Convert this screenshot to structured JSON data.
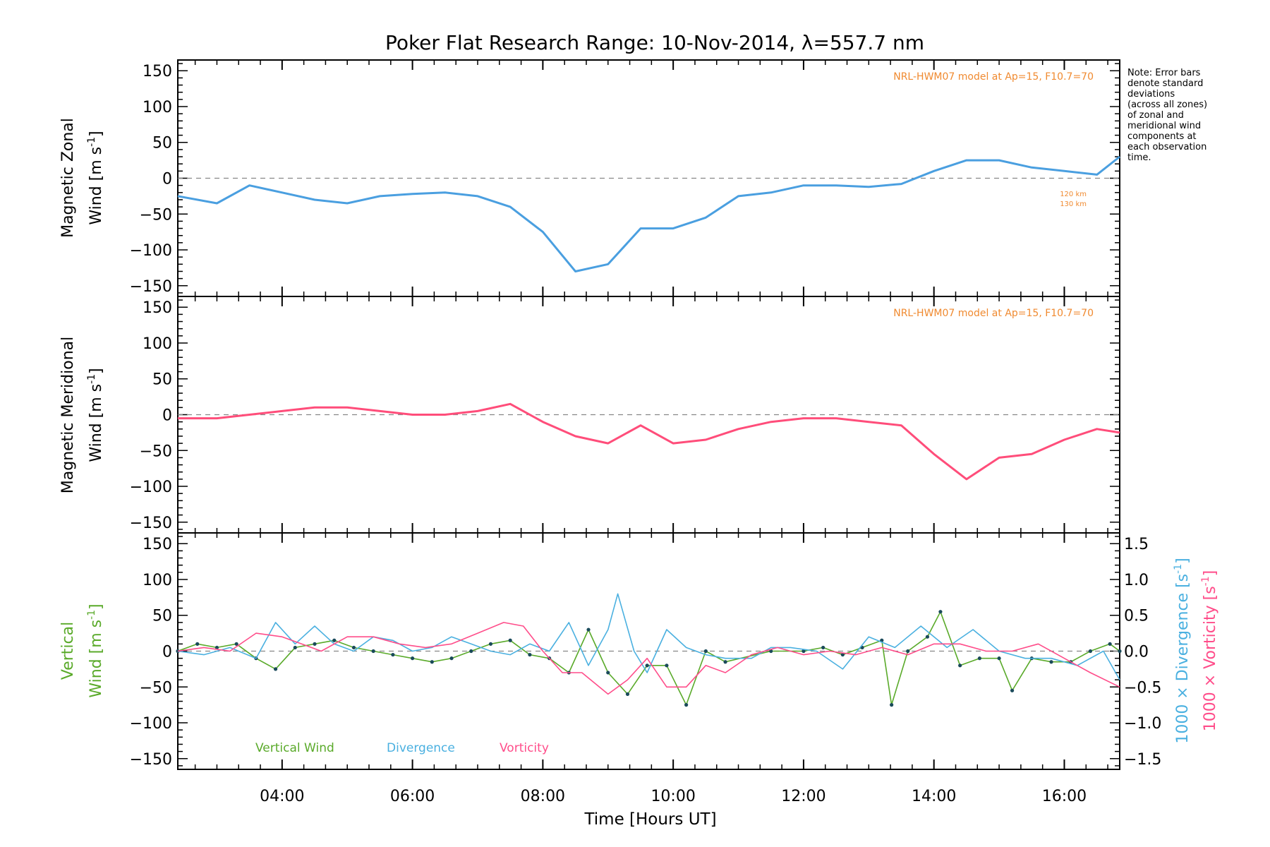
{
  "chart_data": {
    "type": "line",
    "title": "Poker Flat Research Range: 10-Nov-2014, λ=557.7 nm",
    "xlabel": "Time [Hours UT]",
    "xlim": [
      2.4,
      16.85
    ],
    "x_ticks": [
      4,
      6,
      8,
      10,
      12,
      14,
      16
    ],
    "x_tick_labels": [
      "04:00",
      "06:00",
      "08:00",
      "10:00",
      "12:00",
      "14:00",
      "16:00"
    ],
    "note": [
      "Note: Error bars",
      "denote standard",
      "deviations",
      "(across all zones)",
      "of zonal and",
      "meridional wind",
      "components at",
      "each observation",
      "time."
    ],
    "panels": [
      {
        "id": "zonal",
        "ylabel_line1": "Magnetic Zonal",
        "ylabel_line2": "Wind [m s",
        "ylim": [
          -165,
          165
        ],
        "y_ticks": [
          -150,
          -100,
          -50,
          0,
          50,
          100,
          150
        ],
        "model_label": "NRL-HWM07 model at Ap=15, F10.7=70",
        "height_labels": [
          "120 km",
          "130 km"
        ],
        "series": [
          {
            "color": "#4a9fe0",
            "x": [
              2.4,
              3.0,
              3.5,
              4.0,
              4.5,
              5.0,
              5.5,
              6.0,
              6.5,
              7.0,
              7.5,
              8.0,
              8.5,
              9.0,
              9.5,
              10.0,
              10.5,
              11.0,
              11.5,
              12.0,
              12.5,
              13.0,
              13.5,
              14.0,
              14.5,
              15.0,
              15.5,
              16.0,
              16.5,
              16.85
            ],
            "values": [
              -25,
              -35,
              -10,
              -20,
              -30,
              -35,
              -25,
              -22,
              -20,
              -25,
              -40,
              -75,
              -130,
              -120,
              -70,
              -70,
              -55,
              -25,
              -20,
              -10,
              -10,
              -12,
              -8,
              10,
              25,
              25,
              15,
              10,
              5,
              30
            ]
          }
        ]
      },
      {
        "id": "meridional",
        "ylabel_line1": "Magnetic Meridional",
        "ylabel_line2": "Wind [m s",
        "ylim": [
          -165,
          165
        ],
        "y_ticks": [
          -150,
          -100,
          -50,
          0,
          50,
          100,
          150
        ],
        "model_label": "NRL-HWM07 model at Ap=15, F10.7=70",
        "series": [
          {
            "color": "#ff4d7a",
            "x": [
              2.4,
              3.0,
              3.5,
              4.0,
              4.5,
              5.0,
              5.5,
              6.0,
              6.5,
              7.0,
              7.5,
              8.0,
              8.5,
              9.0,
              9.5,
              10.0,
              10.5,
              11.0,
              11.5,
              12.0,
              12.5,
              13.0,
              13.5,
              14.0,
              14.5,
              15.0,
              15.5,
              16.0,
              16.5,
              16.85
            ],
            "values": [
              -5,
              -5,
              0,
              5,
              10,
              10,
              5,
              0,
              0,
              5,
              15,
              -10,
              -30,
              -40,
              -15,
              -40,
              -35,
              -20,
              -10,
              -5,
              -5,
              -10,
              -15,
              -55,
              -90,
              -60,
              -55,
              -35,
              -20,
              -25
            ]
          }
        ]
      },
      {
        "id": "vertical",
        "ylabel_line1": "Vertical",
        "ylabel_line2": "Wind [m s",
        "ylim": [
          -165,
          165
        ],
        "y_ticks": [
          -150,
          -100,
          -50,
          0,
          50,
          100,
          150
        ],
        "y2label_div": "1000 × Divergence [s",
        "y2label_vort": "1000 × Vorticity [s",
        "y2lim": [
          -1.65,
          1.65
        ],
        "y2_ticks": [
          -1.5,
          -1.0,
          -0.5,
          0.0,
          0.5,
          1.0,
          1.5
        ],
        "y2_tick_labels": [
          "−1.5",
          "−1.0",
          "−0.5",
          "0.0",
          "0.5",
          "1.0",
          "1.5"
        ],
        "legend": [
          {
            "label": "Vertical Wind",
            "color": "#5aaa2a"
          },
          {
            "label": "Divergence",
            "color": "#4ab0e0"
          },
          {
            "label": "Vorticity",
            "color": "#ff4d8a"
          }
        ],
        "series": [
          {
            "name": "Vertical Wind",
            "color": "#5aaa2a",
            "axis": "left",
            "x": [
              2.4,
              2.7,
              3.0,
              3.3,
              3.6,
              3.9,
              4.2,
              4.5,
              4.8,
              5.1,
              5.4,
              5.7,
              6.0,
              6.3,
              6.6,
              6.9,
              7.2,
              7.5,
              7.8,
              8.1,
              8.4,
              8.7,
              9.0,
              9.3,
              9.6,
              9.9,
              10.2,
              10.5,
              10.8,
              11.5,
              12.0,
              12.3,
              12.6,
              12.9,
              13.2,
              13.35,
              13.6,
              13.9,
              14.1,
              14.4,
              14.7,
              15.0,
              15.2,
              15.5,
              15.8,
              16.1,
              16.4,
              16.7,
              16.85
            ],
            "values": [
              0,
              10,
              5,
              10,
              -10,
              -25,
              5,
              10,
              15,
              5,
              0,
              -5,
              -10,
              -15,
              -10,
              0,
              10,
              15,
              -5,
              -10,
              -30,
              30,
              -30,
              -60,
              -20,
              -20,
              -75,
              0,
              -15,
              0,
              0,
              5,
              -5,
              5,
              15,
              -75,
              0,
              20,
              55,
              -20,
              -10,
              -10,
              -55,
              -10,
              -15,
              -15,
              0,
              10,
              0
            ]
          },
          {
            "name": "Divergence",
            "color": "#4ab0e0",
            "axis": "right",
            "x": [
              2.4,
              2.8,
              3.2,
              3.6,
              3.9,
              4.2,
              4.5,
              4.8,
              5.1,
              5.4,
              5.7,
              6.0,
              6.3,
              6.6,
              6.9,
              7.2,
              7.5,
              7.8,
              8.1,
              8.4,
              8.7,
              9.0,
              9.15,
              9.4,
              9.6,
              9.9,
              10.2,
              10.5,
              10.8,
              11.2,
              11.5,
              11.8,
              12.2,
              12.6,
              13.0,
              13.4,
              13.8,
              14.2,
              14.6,
              15.0,
              15.4,
              15.8,
              16.2,
              16.6,
              16.85
            ],
            "values": [
              0,
              -0.05,
              0.05,
              -0.1,
              0.4,
              0.1,
              0.35,
              0.1,
              0.0,
              0.2,
              0.15,
              0.0,
              0.05,
              0.2,
              0.1,
              0.0,
              -0.05,
              0.1,
              0.0,
              0.4,
              -0.2,
              0.3,
              0.8,
              0.0,
              -0.3,
              0.3,
              0.05,
              -0.05,
              -0.1,
              -0.1,
              0.05,
              0.05,
              0.0,
              -0.25,
              0.2,
              0.05,
              0.35,
              0.05,
              0.3,
              0.0,
              -0.1,
              -0.1,
              -0.2,
              0.0,
              -0.4
            ]
          },
          {
            "name": "Vorticity",
            "color": "#ff4d8a",
            "axis": "right",
            "x": [
              2.4,
              2.8,
              3.2,
              3.6,
              4.0,
              4.3,
              4.6,
              5.0,
              5.4,
              5.8,
              6.2,
              6.6,
              7.0,
              7.4,
              7.7,
              8.0,
              8.3,
              8.6,
              9.0,
              9.3,
              9.6,
              9.9,
              10.2,
              10.5,
              10.8,
              11.2,
              11.6,
              12.0,
              12.4,
              12.8,
              13.2,
              13.6,
              14.0,
              14.4,
              14.8,
              15.2,
              15.6,
              16.0,
              16.4,
              16.85
            ],
            "values": [
              0,
              0.05,
              0.0,
              0.25,
              0.2,
              0.1,
              0.0,
              0.2,
              0.2,
              0.1,
              0.05,
              0.1,
              0.25,
              0.4,
              0.35,
              0.0,
              -0.3,
              -0.3,
              -0.6,
              -0.4,
              -0.1,
              -0.5,
              -0.5,
              -0.2,
              -0.3,
              -0.05,
              0.05,
              -0.05,
              0.0,
              -0.05,
              0.05,
              -0.05,
              0.1,
              0.1,
              0.0,
              0.0,
              0.1,
              -0.1,
              -0.3,
              -0.5
            ]
          }
        ]
      }
    ]
  }
}
